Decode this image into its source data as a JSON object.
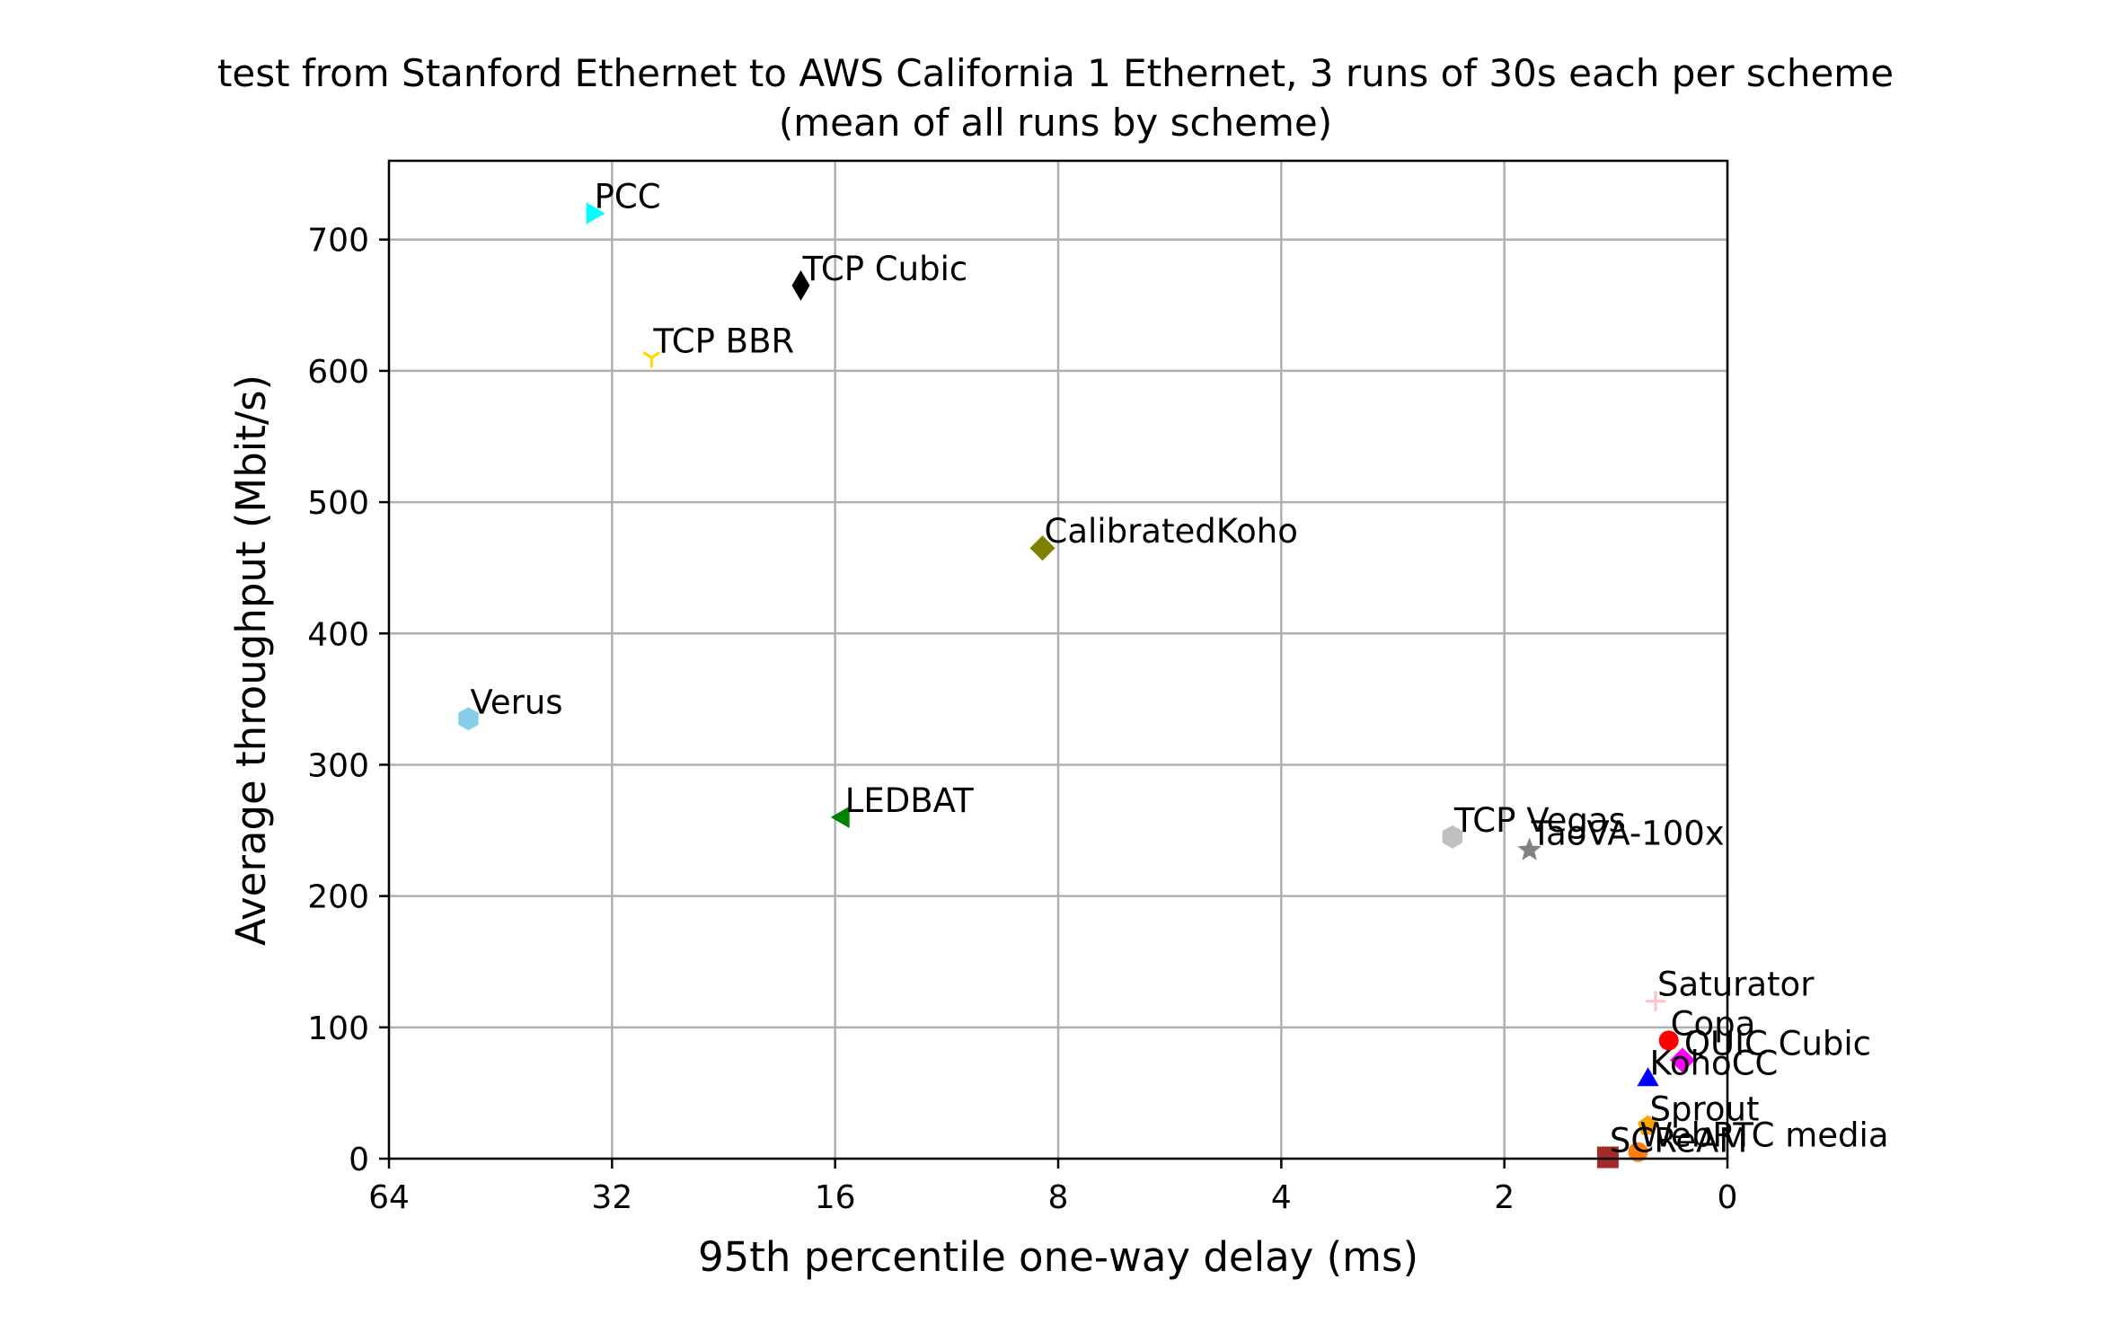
{
  "chart_data": {
    "type": "scatter",
    "title": "test from Stanford Ethernet to AWS California 1 Ethernet, 3 runs of 30s each per scheme",
    "subtitle": "(mean of all runs by scheme)",
    "xlabel": "95th percentile one-way delay (ms)",
    "ylabel": "Average throughput (Mbit/s)",
    "x_scale": "log2",
    "x_inverted": true,
    "xlim": [
      64,
      0
    ],
    "ylim": [
      0,
      760
    ],
    "x_ticks": [
      64,
      32,
      16,
      8,
      4,
      2,
      0
    ],
    "x_tick_labels": [
      "64",
      "32",
      "16",
      "8",
      "4",
      "2",
      "0"
    ],
    "y_ticks": [
      0,
      100,
      200,
      300,
      400,
      500,
      600,
      700
    ],
    "y_tick_labels": [
      "0",
      "100",
      "200",
      "300",
      "400",
      "500",
      "600",
      "700"
    ],
    "grid": true,
    "points": [
      {
        "label": "PCC",
        "x": 34.0,
        "y": 720,
        "marker": "triangle-right",
        "color": "#00ffff"
      },
      {
        "label": "TCP Cubic",
        "x": 17.8,
        "y": 665,
        "marker": "thin-diamond",
        "color": "#000000"
      },
      {
        "label": "TCP BBR",
        "x": 28.3,
        "y": 610,
        "marker": "tri-down",
        "color": "#ffd700"
      },
      {
        "label": "CalibratedKoho",
        "x": 8.4,
        "y": 465,
        "marker": "diamond",
        "color": "#808000"
      },
      {
        "label": "Verus",
        "x": 50.0,
        "y": 335,
        "marker": "hexagon",
        "color": "#87ceeb"
      },
      {
        "label": "LEDBAT",
        "x": 15.6,
        "y": 260,
        "marker": "triangle-left",
        "color": "#008000"
      },
      {
        "label": "TCP Vegas",
        "x": 2.35,
        "y": 245,
        "marker": "hexagon",
        "color": "#c0c0c0"
      },
      {
        "label": "TaoVA-100x",
        "x": 1.85,
        "y": 235,
        "marker": "star",
        "color": "#808080"
      },
      {
        "label": "Saturator",
        "x": 1.25,
        "y": 120,
        "marker": "plus",
        "color": "#ffc0cb"
      },
      {
        "label": "Copa",
        "x": 1.2,
        "y": 90,
        "marker": "circle",
        "color": "#ff0000"
      },
      {
        "label": "QUIC Cubic",
        "x": 1.15,
        "y": 75,
        "marker": "diamond",
        "color": "#ff00ff"
      },
      {
        "label": "KohoCC",
        "x": 1.28,
        "y": 60,
        "marker": "triangle-up",
        "color": "#0000ff"
      },
      {
        "label": "Sprout",
        "x": 1.28,
        "y": 25,
        "marker": "pentagon",
        "color": "#ffa500"
      },
      {
        "label": "WebRTC media",
        "x": 1.32,
        "y": 5,
        "marker": "circle",
        "color": "#ff7f0e"
      },
      {
        "label": "SCReAM",
        "x": 1.45,
        "y": 1,
        "marker": "square",
        "color": "#a52a2a"
      }
    ]
  }
}
